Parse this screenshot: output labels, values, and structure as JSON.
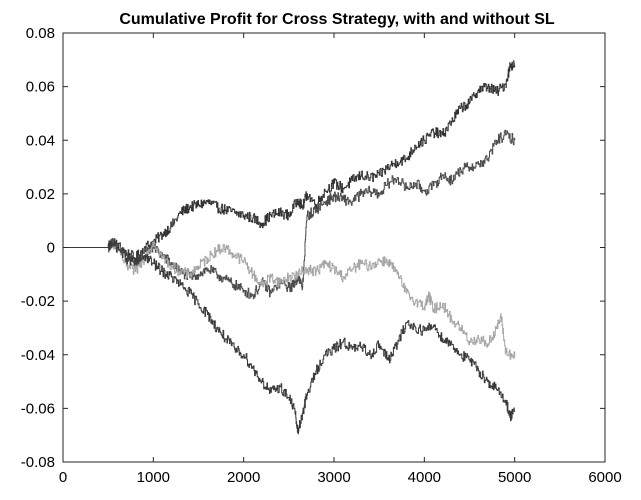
{
  "chart_data": {
    "type": "line",
    "title": "Cumulative Profit for Cross Strategy, with and without SL",
    "xlabel": "",
    "ylabel": "",
    "xlim": [
      0,
      6000
    ],
    "ylim": [
      -0.08,
      0.08
    ],
    "x_ticks": [
      0,
      1000,
      2000,
      3000,
      4000,
      5000,
      6000
    ],
    "y_ticks": [
      -0.08,
      -0.06,
      -0.04,
      -0.02,
      0,
      0.02,
      0.04,
      0.06,
      0.08
    ],
    "x_tick_labels": [
      "0",
      "1000",
      "2000",
      "3000",
      "4000",
      "5000",
      "6000"
    ],
    "y_tick_labels": [
      "-0.08",
      "-0.06",
      "-0.04",
      "-0.02",
      "0",
      "0.02",
      "0.04",
      "0.06",
      "0.08"
    ],
    "grid": false,
    "legend": "none",
    "series": [
      {
        "color": "#333333",
        "x": [
          0,
          500,
          540,
          600,
          700,
          800,
          900,
          1000,
          1100,
          1200,
          1300,
          1400,
          1500,
          1600,
          1700,
          1800,
          1900,
          2000,
          2100,
          2200,
          2300,
          2400,
          2500,
          2600,
          2650,
          2700,
          2800,
          2900,
          3000,
          3100,
          3200,
          3300,
          3400,
          3500,
          3600,
          3700,
          3800,
          3900,
          4000,
          4100,
          4200,
          4300,
          4400,
          4500,
          4600,
          4700,
          4800,
          4900,
          4950,
          5000
        ],
        "y": [
          0,
          0,
          0.002,
          0.001,
          -0.002,
          -0.004,
          0.0,
          0.002,
          0.005,
          0.008,
          0.013,
          0.015,
          0.016,
          0.017,
          0.015,
          0.014,
          0.013,
          0.012,
          0.011,
          0.009,
          0.012,
          0.013,
          0.012,
          0.018,
          0.015,
          0.02,
          0.016,
          0.021,
          0.024,
          0.022,
          0.025,
          0.027,
          0.026,
          0.027,
          0.03,
          0.032,
          0.033,
          0.038,
          0.04,
          0.043,
          0.042,
          0.047,
          0.052,
          0.054,
          0.059,
          0.06,
          0.058,
          0.061,
          0.068,
          0.068
        ]
      },
      {
        "color": "#4d4d4d",
        "x": [
          0,
          500,
          540,
          600,
          700,
          800,
          900,
          1000,
          1100,
          1200,
          1300,
          1400,
          1500,
          1600,
          1700,
          1800,
          1900,
          2000,
          2100,
          2200,
          2300,
          2400,
          2500,
          2550,
          2600,
          2650,
          2700,
          2800,
          2900,
          3000,
          3100,
          3200,
          3300,
          3400,
          3500,
          3600,
          3700,
          3800,
          3900,
          4000,
          4100,
          4200,
          4300,
          4400,
          4500,
          4600,
          4700,
          4800,
          4900,
          5000
        ],
        "y": [
          0,
          0,
          0.002,
          0.0,
          -0.003,
          -0.006,
          -0.003,
          0.0,
          -0.003,
          -0.006,
          -0.009,
          -0.011,
          -0.01,
          -0.008,
          -0.01,
          -0.012,
          -0.014,
          -0.016,
          -0.018,
          -0.013,
          -0.017,
          -0.013,
          -0.015,
          -0.014,
          -0.011,
          -0.015,
          0.012,
          0.014,
          0.017,
          0.019,
          0.018,
          0.017,
          0.02,
          0.021,
          0.02,
          0.024,
          0.026,
          0.022,
          0.024,
          0.021,
          0.023,
          0.027,
          0.025,
          0.029,
          0.03,
          0.031,
          0.033,
          0.04,
          0.042,
          0.04
        ]
      },
      {
        "color": "#a6a6a6",
        "x": [
          0,
          500,
          540,
          600,
          700,
          800,
          900,
          1000,
          1100,
          1200,
          1300,
          1400,
          1500,
          1600,
          1700,
          1800,
          1900,
          2000,
          2100,
          2200,
          2300,
          2400,
          2500,
          2600,
          2700,
          2800,
          2900,
          3000,
          3100,
          3200,
          3300,
          3400,
          3500,
          3600,
          3700,
          3800,
          3900,
          4000,
          4050,
          4100,
          4200,
          4300,
          4400,
          4500,
          4600,
          4700,
          4800,
          4850,
          4900,
          5000
        ],
        "y": [
          0,
          0,
          0.002,
          0.0,
          -0.007,
          -0.009,
          -0.004,
          0.002,
          -0.004,
          -0.007,
          -0.009,
          -0.01,
          -0.007,
          -0.004,
          -0.001,
          0.0,
          -0.003,
          -0.005,
          -0.01,
          -0.014,
          -0.011,
          -0.013,
          -0.011,
          -0.01,
          -0.008,
          -0.009,
          -0.006,
          -0.008,
          -0.011,
          -0.008,
          -0.006,
          -0.007,
          -0.005,
          -0.005,
          -0.01,
          -0.017,
          -0.02,
          -0.022,
          -0.018,
          -0.023,
          -0.021,
          -0.027,
          -0.03,
          -0.035,
          -0.034,
          -0.036,
          -0.03,
          -0.026,
          -0.039,
          -0.041
        ]
      },
      {
        "color": "#3a3a3a",
        "x": [
          0,
          500,
          540,
          600,
          700,
          800,
          900,
          1000,
          1100,
          1200,
          1300,
          1400,
          1500,
          1600,
          1700,
          1800,
          1900,
          2000,
          2100,
          2200,
          2300,
          2400,
          2500,
          2560,
          2600,
          2650,
          2700,
          2800,
          2900,
          3000,
          3100,
          3200,
          3300,
          3400,
          3500,
          3600,
          3700,
          3800,
          3900,
          4000,
          4100,
          4200,
          4300,
          4400,
          4500,
          4600,
          4700,
          4800,
          4900,
          4950,
          5000
        ],
        "y": [
          0,
          0,
          0.002,
          0.0,
          -0.004,
          -0.006,
          -0.003,
          -0.006,
          -0.009,
          -0.011,
          -0.014,
          -0.017,
          -0.021,
          -0.025,
          -0.03,
          -0.034,
          -0.038,
          -0.04,
          -0.045,
          -0.05,
          -0.054,
          -0.052,
          -0.056,
          -0.06,
          -0.069,
          -0.062,
          -0.055,
          -0.046,
          -0.04,
          -0.038,
          -0.035,
          -0.038,
          -0.037,
          -0.04,
          -0.036,
          -0.042,
          -0.036,
          -0.028,
          -0.03,
          -0.031,
          -0.029,
          -0.034,
          -0.036,
          -0.04,
          -0.042,
          -0.046,
          -0.05,
          -0.053,
          -0.057,
          -0.063,
          -0.061
        ]
      }
    ]
  }
}
